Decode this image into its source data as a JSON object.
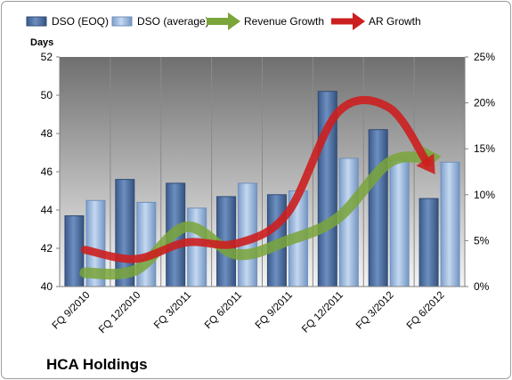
{
  "company": "HCA Holdings",
  "colors": {
    "dso_eoq": "#4a6ea0",
    "dso_average": "#93b4dc",
    "revenue_growth": "#7aa53a",
    "ar_growth": "#cc1f1f",
    "plot_bg_top": "#6f6f6f",
    "plot_bg_bottom": "#f4f4f4"
  },
  "chart_data": {
    "type": "bar",
    "y_axis_title": "Days",
    "categories": [
      "FQ 9/2010",
      "FQ 12/2010",
      "FQ 3/2011",
      "FQ 6/2011",
      "FQ 9/2011",
      "FQ 12/2011",
      "FQ 3/2012",
      "FQ 6/2012"
    ],
    "ylim": [
      40,
      52
    ],
    "yticks": [
      40,
      42,
      44,
      46,
      48,
      50,
      52
    ],
    "y2lim": [
      0,
      25
    ],
    "y2ticks": [
      "0%",
      "5%",
      "10%",
      "15%",
      "20%",
      "25%"
    ],
    "series": [
      {
        "name": "DSO (EOQ)",
        "type": "bar",
        "axis": "left",
        "values": [
          43.7,
          45.6,
          45.4,
          44.7,
          44.8,
          50.2,
          48.2,
          44.6
        ]
      },
      {
        "name": "DSO (average)",
        "type": "bar",
        "axis": "left",
        "values": [
          44.5,
          44.4,
          44.1,
          45.4,
          45.0,
          46.7,
          46.6,
          46.5
        ]
      },
      {
        "name": "Revenue Growth",
        "type": "arrow-line",
        "axis": "right",
        "values": [
          1.5,
          1.8,
          6.5,
          3.5,
          5.0,
          7.5,
          13.5,
          14.0
        ]
      },
      {
        "name": "AR Growth",
        "type": "arrow-line",
        "axis": "right",
        "values": [
          4.0,
          3.0,
          4.8,
          4.7,
          8.0,
          19.0,
          19.5,
          13.5
        ]
      }
    ],
    "grid": "vertical",
    "legend_position": "top"
  }
}
